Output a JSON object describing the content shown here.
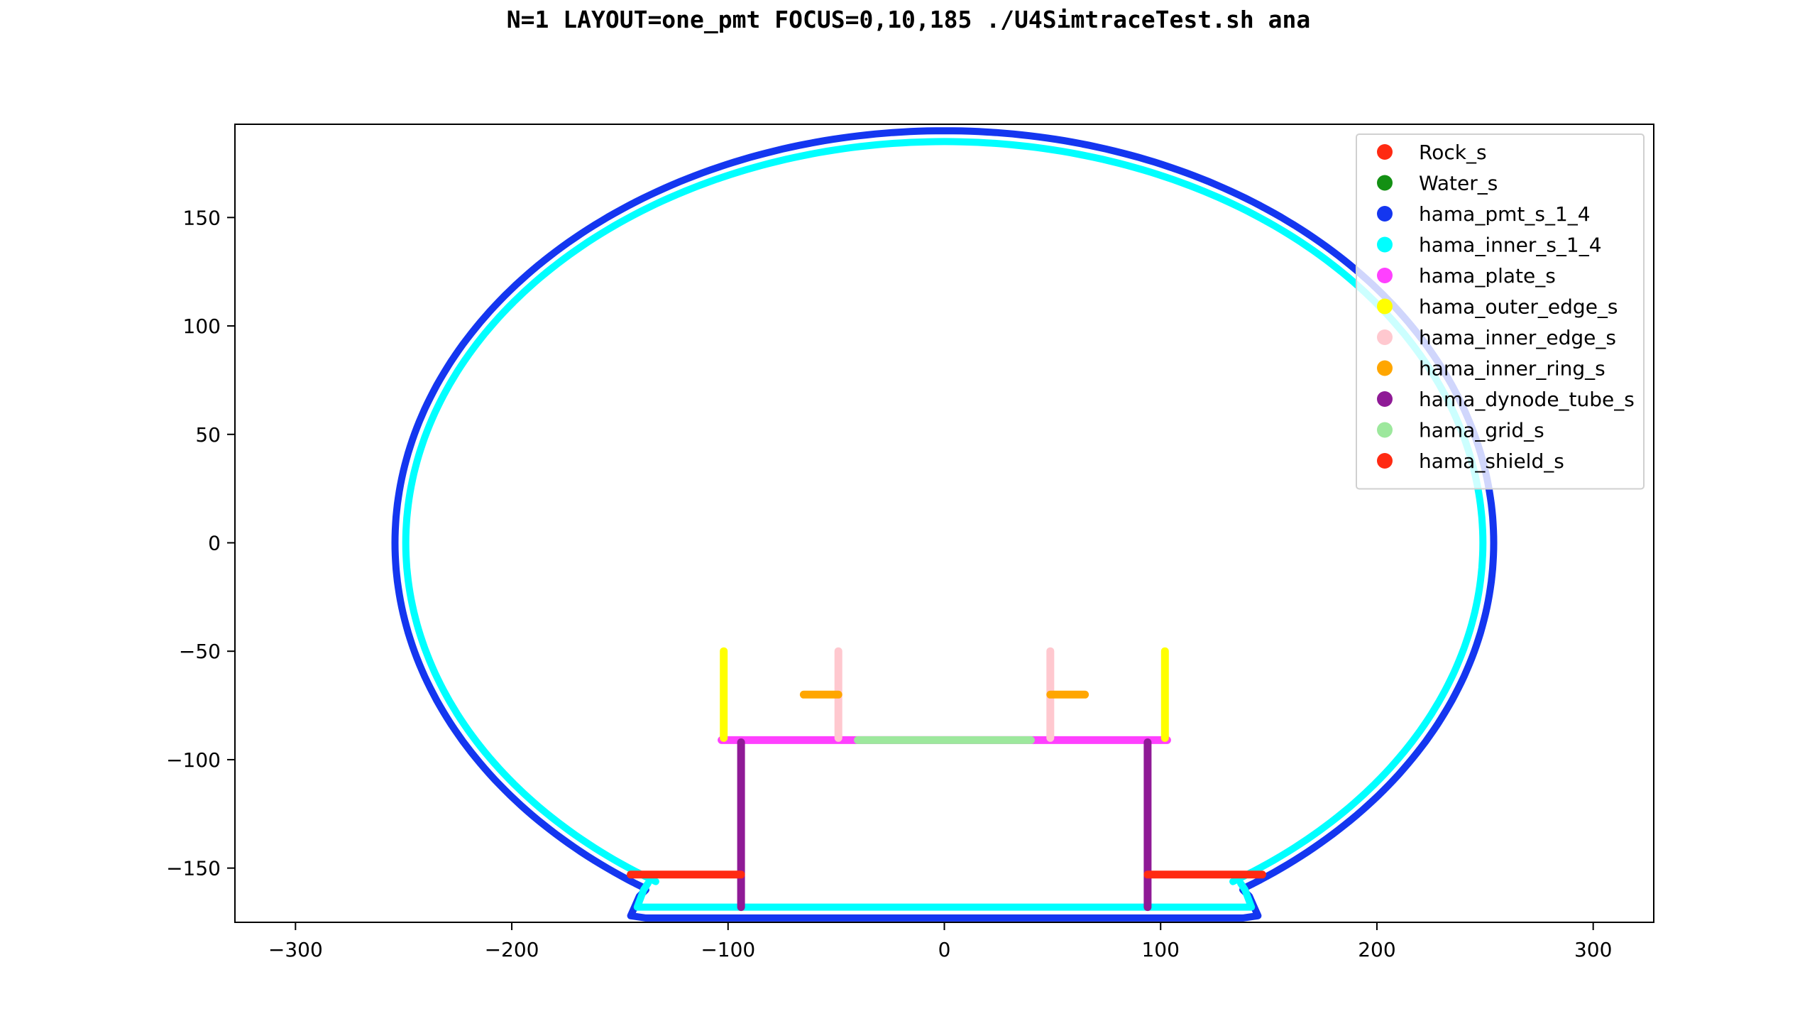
{
  "chart_data": {
    "type": "scatter",
    "title": "N=1 LAYOUT=one_pmt FOCUS=0,10,185 ./U4SimtraceTest.sh ana",
    "xlabel": "",
    "ylabel": "",
    "xlim": [
      -328,
      328
    ],
    "ylim": [
      -175,
      193
    ],
    "x_ticks": [
      -300,
      -200,
      -100,
      0,
      100,
      200,
      300
    ],
    "x_tick_labels": [
      "−300",
      "−200",
      "−100",
      "0",
      "100",
      "200",
      "300"
    ],
    "y_ticks": [
      150,
      100,
      50,
      0,
      -50,
      -100,
      -150
    ],
    "y_tick_labels": [
      "150",
      "100",
      "50",
      "0",
      "−50",
      "−100",
      "−150"
    ],
    "grid": false,
    "legend_position": "upper-right",
    "series": [
      {
        "name": "Rock_s",
        "color": "#ff2a12",
        "shapes": []
      },
      {
        "name": "Water_s",
        "color": "#139013",
        "shapes": []
      },
      {
        "name": "hama_pmt_s_1_4",
        "color": "#1436f0",
        "shapes": [
          {
            "kind": "ellipse",
            "cx": 0,
            "cy": 0,
            "rx": 254,
            "ry": 190,
            "ymin": -160
          },
          {
            "kind": "polyline",
            "points": [
              [
                -138,
                -160
              ],
              [
                -141,
                -163
              ],
              [
                -145,
                -172
              ],
              [
                -138,
                -173
              ],
              [
                138,
                -173
              ],
              [
                145,
                -172
              ],
              [
                141,
                -163
              ],
              [
                138,
                -160
              ]
            ]
          }
        ]
      },
      {
        "name": "hama_inner_s_1_4",
        "color": "#00ffff",
        "shapes": [
          {
            "kind": "ellipse",
            "cx": 0,
            "cy": 0,
            "rx": 249,
            "ry": 185,
            "ymin": -157
          },
          {
            "kind": "polyline",
            "points": [
              [
                -137,
                -157
              ],
              [
                -139,
                -160
              ],
              [
                -142,
                -168
              ],
              [
                -135,
                -168
              ],
              [
                135,
                -168
              ],
              [
                142,
                -168
              ],
              [
                139,
                -160
              ],
              [
                137,
                -157
              ]
            ]
          }
        ]
      },
      {
        "name": "hama_plate_s",
        "color": "#ff40ff",
        "shapes": [
          {
            "kind": "line",
            "points": [
              [
                -103,
                -91
              ],
              [
                103,
                -91
              ]
            ]
          }
        ]
      },
      {
        "name": "hama_outer_edge_s",
        "color": "#ffff00",
        "shapes": [
          {
            "kind": "line",
            "points": [
              [
                -102,
                -50
              ],
              [
                -102,
                -90
              ]
            ]
          },
          {
            "kind": "line",
            "points": [
              [
                102,
                -50
              ],
              [
                102,
                -90
              ]
            ]
          }
        ]
      },
      {
        "name": "hama_inner_edge_s",
        "color": "#ffc8cf",
        "shapes": [
          {
            "kind": "line",
            "points": [
              [
                -49,
                -50
              ],
              [
                -49,
                -90
              ]
            ]
          },
          {
            "kind": "line",
            "points": [
              [
                49,
                -50
              ],
              [
                49,
                -90
              ]
            ]
          }
        ]
      },
      {
        "name": "hama_inner_ring_s",
        "color": "#ffa600",
        "shapes": [
          {
            "kind": "line",
            "points": [
              [
                -65,
                -70
              ],
              [
                -49,
                -70
              ]
            ]
          },
          {
            "kind": "line",
            "points": [
              [
                49,
                -70
              ],
              [
                65,
                -70
              ]
            ]
          }
        ]
      },
      {
        "name": "hama_dynode_tube_s",
        "color": "#8f1a96",
        "shapes": [
          {
            "kind": "line",
            "points": [
              [
                -94,
                -92
              ],
              [
                -94,
                -168
              ]
            ]
          },
          {
            "kind": "line",
            "points": [
              [
                94,
                -92
              ],
              [
                94,
                -168
              ]
            ]
          }
        ]
      },
      {
        "name": "hama_grid_s",
        "color": "#9de89d",
        "shapes": [
          {
            "kind": "line",
            "points": [
              [
                -40,
                -91
              ],
              [
                40,
                -91
              ]
            ]
          }
        ]
      },
      {
        "name": "hama_shield_s",
        "color": "#ff2a12",
        "shapes": [
          {
            "kind": "line",
            "points": [
              [
                -145,
                -153
              ],
              [
                -94,
                -153
              ]
            ]
          },
          {
            "kind": "line",
            "points": [
              [
                94,
                -153
              ],
              [
                147,
                -153
              ]
            ]
          }
        ]
      }
    ]
  }
}
